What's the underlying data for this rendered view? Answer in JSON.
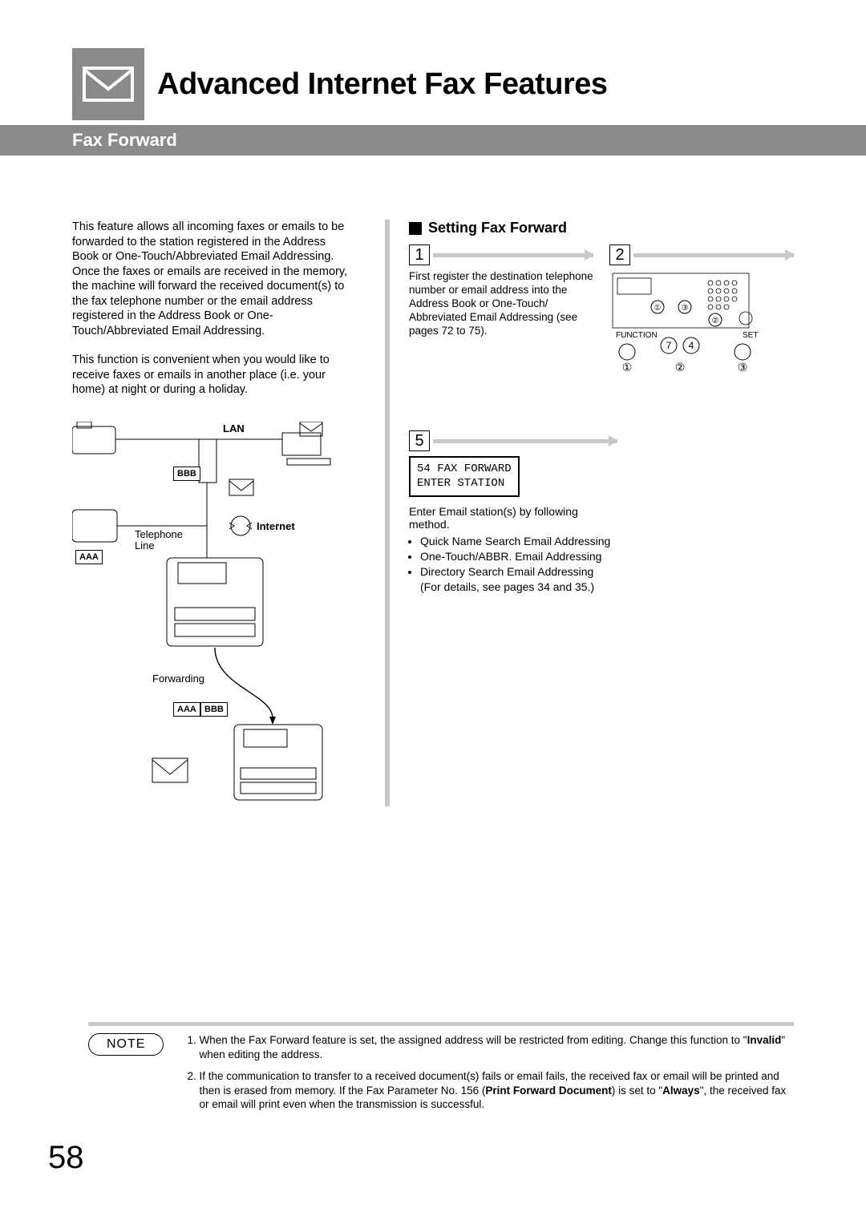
{
  "header": {
    "title": "Advanced Internet Fax Features",
    "section": "Fax Forward"
  },
  "intro": {
    "p1": "This feature allows all incoming faxes or emails to be forwarded to the station registered in the Address Book or One-Touch/Abbreviated Email Addressing. Once the faxes or emails are received in the memory, the machine will forward the received document(s) to the fax telephone number or the email address registered in the Address Book or One-Touch/Abbreviated Email Addressing.",
    "p2": "This function is convenient when you would like to receive faxes or emails in another place (i.e. your home) at night or during a holiday."
  },
  "diagram": {
    "labels": {
      "lan": "LAN",
      "bbb": "BBB",
      "aaa": "AAA",
      "telephone_line": "Telephone\nLine",
      "internet": "Internet",
      "forwarding": "Forwarding",
      "bottom_aaa": "AAA",
      "bottom_bbb": "BBB"
    }
  },
  "setting": {
    "heading": "Setting Fax Forward",
    "step1": {
      "num": "1",
      "text": "First register the destination telephone number or email address into the Address Book or One-Touch/ Abbreviated Email Addressing (see pages 72 to 75)."
    },
    "step2": {
      "num": "2",
      "panel_function": "FUNCTION",
      "panel_set": "SET",
      "panel_seq_7": "7",
      "panel_seq_4": "4",
      "panel_c1": "①",
      "panel_c2": "②",
      "panel_c3": "③",
      "big_c1": "①",
      "big_c2": "②",
      "big_c3": "③"
    },
    "step5": {
      "num": "5",
      "lcd": "54 FAX FORWARD\nENTER STATION",
      "lead": "Enter Email station(s) by following method.",
      "bullets": [
        "Quick Name Search Email Addressing",
        "One-Touch/ABBR. Email Addressing",
        "Directory Search Email Addressing\n(For details, see pages 34 and 35.)"
      ]
    }
  },
  "note": {
    "label": "NOTE",
    "items": [
      "When the Fax Forward feature is set, the assigned address will be restricted from editing. Change this function to \"Invalid\" when editing the address.",
      "If the communication to transfer to a received document(s) fails or email fails, the received fax or email will be printed and then is erased from memory. If the Fax Parameter No. 156 (Print Forward Document) is set to \"Always\", the received fax or email will print even when the transmission is successful."
    ],
    "bold_invalid": "Invalid",
    "bold_print_fwd": "Print Forward Document",
    "bold_always": "Always"
  },
  "page_number": "58",
  "colors": {
    "accent_gray": "#8a8a8a",
    "light_gray": "#c8c8c8"
  }
}
